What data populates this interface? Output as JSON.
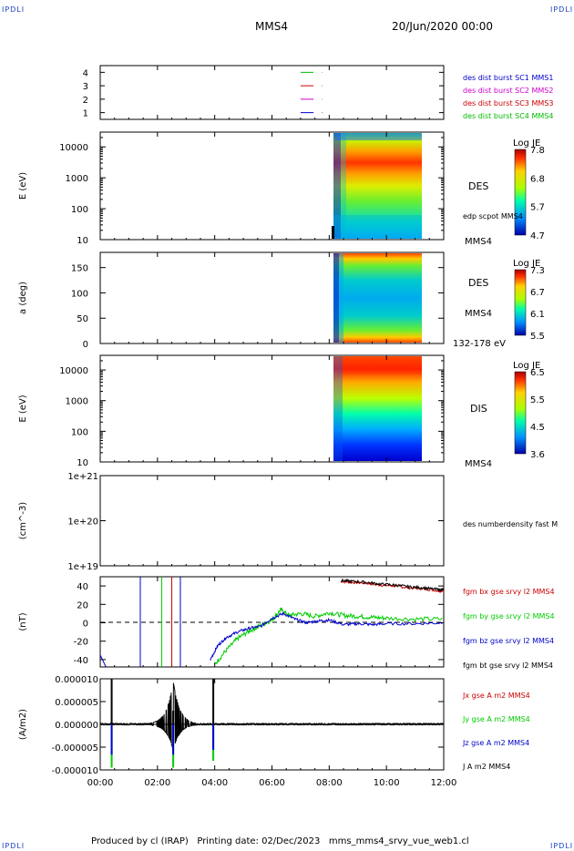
{
  "corner_label": "IPDLI",
  "header": {
    "spacecraft": "MMS4",
    "date": "20/Jun/2020 00:00"
  },
  "footer": {
    "produced_by": "Produced by cl (IRAP)",
    "printing_date": "Printing date: 02/Dec/2023",
    "script_name": "mms_mms4_srvy_vue_web1.cl"
  },
  "colors": {
    "mms1": "#0000cc",
    "mms2": "#cc00cc",
    "mms3": "#cc0000",
    "mms4": "#00bb00",
    "bx": "#cc0000",
    "by": "#00cc00",
    "bz": "#0000cc",
    "bt": "#000000"
  },
  "chart_data": [
    {
      "type": "line",
      "panel": "burst-availability",
      "yticks": [
        "1",
        "2",
        "3",
        "4"
      ],
      "ylim": [
        0.5,
        4.5
      ],
      "series": [
        {
          "name": "des dist burst SC1 MMS1",
          "segments": [
            [
              7.0,
              7.45
            ],
            [
              7.75,
              7.77
            ]
          ]
        },
        {
          "name": "des dist burst SC2 MMS2",
          "segments": [
            [
              7.0,
              7.45
            ],
            [
              7.75,
              7.77
            ]
          ]
        },
        {
          "name": "des dist burst SC3 MMS3",
          "segments": [
            [
              7.0,
              7.45
            ],
            [
              7.75,
              7.77
            ]
          ]
        },
        {
          "name": "des dist burst SC4 MMS4",
          "segments": [
            [
              7.0,
              7.45
            ],
            [
              7.75,
              7.77
            ]
          ]
        }
      ]
    },
    {
      "type": "heatmap",
      "panel": "des-energy-spectrogram",
      "ylabel": "E (eV)",
      "yticks": [
        "10",
        "100",
        "1000",
        "10000"
      ],
      "ylog": true,
      "data_range_hours": [
        8.1,
        11.25
      ],
      "labels": [
        "DES",
        "edp scpot MMS4",
        "MMS4"
      ],
      "colorbar": {
        "title": "Log JE",
        "ticks": [
          "7.8",
          "6.8",
          "5.7",
          "4.7"
        ]
      }
    },
    {
      "type": "heatmap",
      "panel": "des-pitch-angle",
      "ylabel": "a (deg)",
      "yticks": [
        "0",
        "50",
        "100",
        "150"
      ],
      "ylim": [
        0,
        180
      ],
      "data_range_hours": [
        8.1,
        11.25
      ],
      "labels": [
        "DES",
        "MMS4",
        "132-178 eV"
      ],
      "colorbar": {
        "title": "Log JE",
        "ticks": [
          "7.3",
          "6.7",
          "6.1",
          "5.5"
        ]
      }
    },
    {
      "type": "heatmap",
      "panel": "dis-energy-spectrogram",
      "ylabel": "E (eV)",
      "yticks": [
        "10",
        "100",
        "1000",
        "10000"
      ],
      "ylog": true,
      "data_range_hours": [
        8.1,
        11.25
      ],
      "labels": [
        "DIS",
        "MMS4"
      ],
      "colorbar": {
        "title": "Log JE",
        "ticks": [
          "6.5",
          "5.5",
          "4.5",
          "3.6"
        ]
      }
    },
    {
      "type": "line",
      "panel": "density",
      "ylabel": "(cm^-3)",
      "yticks": [
        "1e+19",
        "1e+20",
        "1e+21"
      ],
      "series": [
        {
          "name": "des numberdensity fast M",
          "x": [],
          "y": []
        }
      ]
    },
    {
      "type": "line",
      "panel": "magnetic-field",
      "ylabel": "(nT)",
      "yticks": [
        "-40",
        "-20",
        "0",
        "20",
        "40"
      ],
      "ylim": [
        -48,
        50
      ],
      "series": [
        {
          "name": "fgm bx gse srvy l2 MMS4",
          "x": [
            8.4,
            8.8,
            9.3,
            9.8,
            10.3,
            10.8,
            11.3,
            11.8,
            12.0
          ],
          "y": [
            45,
            44,
            43,
            41,
            40,
            38,
            37,
            35,
            35
          ]
        },
        {
          "name": "fgm by gse srvy l2 MMS4",
          "x": [
            4.0,
            4.4,
            4.8,
            5.2,
            5.6,
            6.0,
            6.3,
            6.6,
            7.0,
            7.5,
            8.0,
            8.5,
            9.0,
            9.5,
            10.0,
            11.0,
            12.0
          ],
          "y": [
            -45,
            -30,
            -17,
            -9,
            -3,
            3,
            14,
            8,
            10,
            7,
            11,
            8,
            7,
            6,
            5,
            4,
            4
          ]
        },
        {
          "name": "fgm bz gse srvy l2 MMS4",
          "x": [
            3.85,
            4.1,
            4.4,
            4.8,
            5.2,
            5.6,
            6.0,
            6.4,
            6.8,
            7.2,
            7.6,
            8.0,
            8.5,
            9.0,
            9.5,
            10.0,
            11.0,
            12.0
          ],
          "y": [
            -40,
            -25,
            -16,
            -10,
            -6,
            -4,
            5,
            10,
            4,
            0,
            2,
            3,
            -2,
            -1,
            -2,
            -1,
            -1,
            0
          ]
        },
        {
          "name": "fgm bt gse srvy l2 MMS4",
          "x": [
            8.4,
            8.8,
            9.3,
            9.8,
            10.3,
            10.8,
            11.3,
            11.8,
            12.0
          ],
          "y": [
            46,
            45,
            44,
            42,
            41,
            39,
            38,
            36,
            36
          ]
        }
      ]
    },
    {
      "type": "line",
      "panel": "current-density",
      "ylabel": "(A/m2)",
      "yticks": [
        "-0.000010",
        "-0.000005",
        "0.000000",
        "0.000005",
        "0.000010"
      ],
      "ylim": [
        -1e-05,
        1e-05
      ],
      "series": [
        {
          "name": "Jx gse A m2 MMS4"
        },
        {
          "name": "Jy gse A m2 MMS4"
        },
        {
          "name": "Jz gse A m2 MMS4"
        },
        {
          "name": "J A m2 MMS4"
        }
      ]
    }
  ],
  "xaxis": {
    "ticks": [
      "00:00",
      "02:00",
      "04:00",
      "06:00",
      "08:00",
      "10:00",
      "12:00"
    ],
    "xlim_hours": [
      0,
      12
    ]
  }
}
